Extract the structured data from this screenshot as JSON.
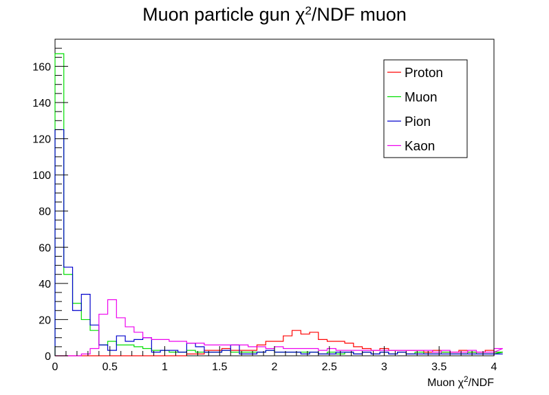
{
  "chart_data": {
    "type": "histogram",
    "title_main": "Muon particle gun ",
    "title_sym": "χ",
    "title_sup": "2",
    "title_rest": "/NDF muon",
    "xlabel_main": "Muon ",
    "xlabel_sym": "χ",
    "xlabel_sup": "2",
    "xlabel_rest": "/NDF",
    "xlim": [
      0,
      4
    ],
    "ylim": [
      0,
      175
    ],
    "bin_width": 0.08,
    "x_ticks": [
      0,
      0.5,
      1,
      1.5,
      2,
      2.5,
      3,
      3.5,
      4
    ],
    "x_tick_labels": [
      "0",
      "0.5",
      "1",
      "1.5",
      "2",
      "2.5",
      "3",
      "3.5",
      "4"
    ],
    "y_ticks": [
      0,
      20,
      40,
      60,
      80,
      100,
      120,
      140,
      160
    ],
    "y_tick_labels": [
      "0",
      "20",
      "40",
      "60",
      "80",
      "100",
      "120",
      "140",
      "160"
    ],
    "legend_position": "top-right",
    "series": [
      {
        "name": "Proton",
        "color": "#ff0000",
        "values": [
          0,
          0,
          0,
          0,
          0,
          0,
          0,
          0,
          0,
          0,
          0,
          0,
          0,
          0,
          0,
          1,
          1,
          3,
          3,
          4,
          3,
          3,
          3,
          6,
          8,
          8,
          11,
          14,
          12,
          13,
          9,
          8,
          8,
          7,
          5,
          4,
          3,
          4,
          3,
          3,
          3,
          3,
          2,
          3,
          2,
          2,
          3,
          2,
          2,
          3,
          2,
          2
        ]
      },
      {
        "name": "Muon",
        "color": "#00dd00",
        "values": [
          167,
          45,
          29,
          20,
          14,
          6,
          8,
          6,
          6,
          5,
          4,
          3,
          3,
          2,
          2,
          3,
          2,
          2,
          2,
          3,
          2,
          2,
          2,
          2,
          3,
          2,
          2,
          2,
          2,
          2,
          1,
          2,
          1,
          2,
          1,
          2,
          1,
          2,
          1,
          2,
          1,
          2,
          1,
          1,
          2,
          1,
          1,
          2,
          1,
          1,
          1,
          2
        ]
      },
      {
        "name": "Pion",
        "color": "#0000cc",
        "values": [
          125,
          49,
          25,
          34,
          17,
          6,
          3,
          11,
          8,
          9,
          10,
          2,
          3,
          3,
          2,
          7,
          5,
          2,
          2,
          3,
          6,
          1,
          1,
          2,
          3,
          2,
          2,
          2,
          1,
          2,
          1,
          1,
          2,
          2,
          1,
          2,
          1,
          2,
          1,
          2,
          1,
          1,
          1,
          1,
          1,
          1,
          1,
          1,
          1,
          1,
          1,
          1
        ]
      },
      {
        "name": "Kaon",
        "color": "#ee00ee",
        "values": [
          0,
          0,
          0,
          1,
          4,
          23,
          31,
          21,
          16,
          13,
          10,
          9,
          9,
          8,
          8,
          7,
          7,
          6,
          6,
          6,
          6,
          6,
          5,
          5,
          4,
          5,
          4,
          4,
          4,
          4,
          3,
          4,
          3,
          3,
          3,
          3,
          3,
          3,
          3,
          3,
          3,
          3,
          3,
          2,
          3,
          2,
          2,
          3,
          2,
          2,
          2,
          4
        ]
      }
    ]
  }
}
